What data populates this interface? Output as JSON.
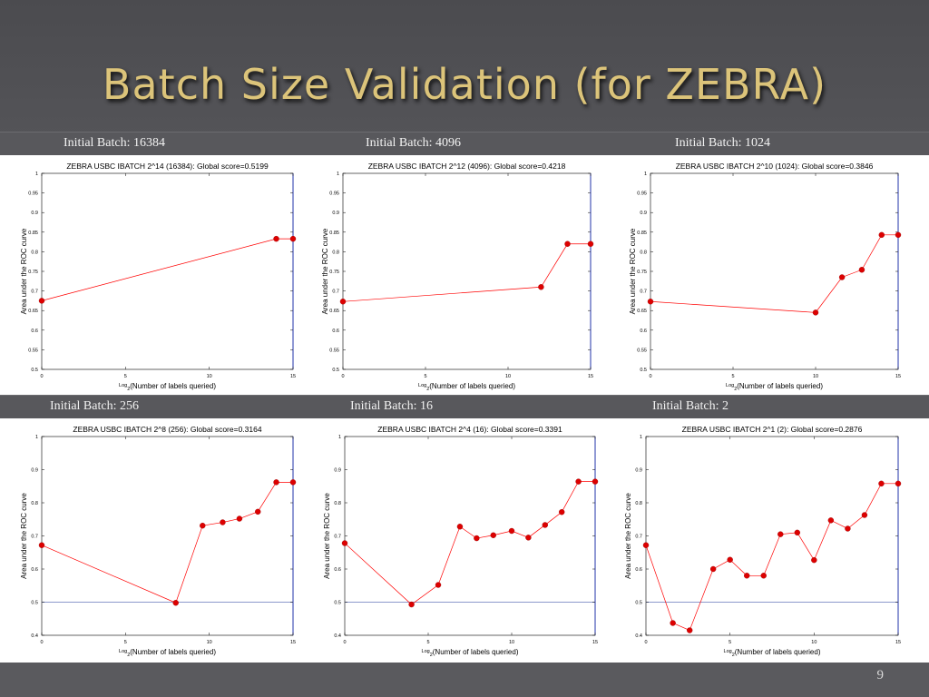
{
  "slide": {
    "title": "Batch Size Validation (for ZEBRA)",
    "page_number": "9",
    "row_labels": [
      "Initial Batch: 16384",
      "Initial Batch: 4096",
      "Initial Batch: 1024",
      "Initial Batch: 256",
      "Initial Batch: 16",
      "Initial Batch: 2"
    ]
  },
  "colors": {
    "series": "#ff0000",
    "marker": "#dd0000",
    "title": "#dcc47a",
    "background": "#505054"
  },
  "chart_data": [
    {
      "type": "line",
      "title": "ZEBRA USBC IBATCH 2^14 (16384): Global score=0.5199",
      "xlabel_pre": "Log",
      "xlabel_sub": "2",
      "xlabel_post": "(Number of labels queried)",
      "ylabel": "Area under the ROC curve",
      "xlim": [
        0,
        15
      ],
      "ylim": [
        0.5,
        1
      ],
      "xticks": [
        0,
        5,
        10,
        15
      ],
      "xtick_labels": [
        "0",
        "5",
        "10",
        "15"
      ],
      "yticks": [
        0.5,
        0.55,
        0.6,
        0.65,
        0.7,
        0.75,
        0.8,
        0.85,
        0.9,
        0.95,
        1
      ],
      "ytick_labels": [
        "0.5",
        "0.55",
        "0.6",
        "0.65",
        "0.7",
        "0.75",
        "0.8",
        "0.85",
        "0.9",
        "0.95",
        "1"
      ],
      "ref_line": null,
      "x": [
        0,
        14,
        15
      ],
      "y": [
        0.675,
        0.833,
        0.833
      ]
    },
    {
      "type": "line",
      "title": "ZEBRA USBC IBATCH 2^12 (4096): Global score=0.4218",
      "xlabel_pre": "Log",
      "xlabel_sub": "2",
      "xlabel_post": "(Number of labels queried)",
      "ylabel": "Area under the ROC curve",
      "xlim": [
        0,
        15
      ],
      "ylim": [
        0.5,
        1
      ],
      "xticks": [
        0,
        5,
        10,
        15
      ],
      "xtick_labels": [
        "0",
        "5",
        "10",
        "15"
      ],
      "yticks": [
        0.5,
        0.55,
        0.6,
        0.65,
        0.7,
        0.75,
        0.8,
        0.85,
        0.9,
        0.95,
        1
      ],
      "ytick_labels": [
        "0.5",
        "0.55",
        "0.6",
        "0.65",
        "0.7",
        "0.75",
        "0.8",
        "0.85",
        "0.9",
        "0.95",
        "1"
      ],
      "ref_line": null,
      "x": [
        0,
        12,
        13.6,
        15
      ],
      "y": [
        0.673,
        0.71,
        0.82,
        0.82
      ]
    },
    {
      "type": "line",
      "title": "ZEBRA USBC IBATCH 2^10 (1024): Global score=0.3846",
      "xlabel_pre": "Log",
      "xlabel_sub": "2",
      "xlabel_post": "(Number of labels queried)",
      "ylabel": "Area under the ROC curve",
      "xlim": [
        0,
        15
      ],
      "ylim": [
        0.5,
        1
      ],
      "xticks": [
        0,
        5,
        10,
        15
      ],
      "xtick_labels": [
        "0",
        "5",
        "10",
        "15"
      ],
      "yticks": [
        0.5,
        0.55,
        0.6,
        0.65,
        0.7,
        0.75,
        0.8,
        0.85,
        0.9,
        0.95,
        1
      ],
      "ytick_labels": [
        "0.5",
        "0.55",
        "0.6",
        "0.65",
        "0.7",
        "0.75",
        "0.8",
        "0.85",
        "0.9",
        "0.95",
        "1"
      ],
      "ref_line": null,
      "x": [
        0,
        10,
        11.6,
        12.8,
        14,
        15
      ],
      "y": [
        0.673,
        0.645,
        0.735,
        0.754,
        0.843,
        0.843
      ]
    },
    {
      "type": "line",
      "title": "ZEBRA USBC IBATCH 2^8 (256): Global score=0.3164",
      "xlabel_pre": "Log",
      "xlabel_sub": "2",
      "xlabel_post": "(Number of labels queried)",
      "ylabel": "Area under the ROC curve",
      "xlim": [
        0,
        15
      ],
      "ylim": [
        0.4,
        1
      ],
      "xticks": [
        0,
        5,
        10,
        15
      ],
      "xtick_labels": [
        "0",
        "5",
        "10",
        "15"
      ],
      "yticks": [
        0.4,
        0.5,
        0.6,
        0.7,
        0.8,
        0.9,
        1
      ],
      "ytick_labels": [
        "0.4",
        "0.5",
        "0.6",
        "0.7",
        "0.8",
        "0.9",
        "1"
      ],
      "ref_line": 0.5,
      "x": [
        0,
        8,
        9.6,
        10.8,
        11.8,
        12.9,
        14,
        15
      ],
      "y": [
        0.672,
        0.498,
        0.731,
        0.741,
        0.752,
        0.773,
        0.862,
        0.862
      ]
    },
    {
      "type": "line",
      "title": "ZEBRA USBC IBATCH 2^4 (16): Global score=0.3391",
      "xlabel_pre": "Log",
      "xlabel_sub": "2",
      "xlabel_post": "(Number of labels queried)",
      "ylabel": "Area under the ROC curve",
      "xlim": [
        0,
        15
      ],
      "ylim": [
        0.4,
        1
      ],
      "xticks": [
        0,
        5,
        10,
        15
      ],
      "xtick_labels": [
        "0",
        "5",
        "10",
        "15"
      ],
      "yticks": [
        0.4,
        0.5,
        0.6,
        0.7,
        0.8,
        0.9,
        1
      ],
      "ytick_labels": [
        "0.4",
        "0.5",
        "0.6",
        "0.7",
        "0.8",
        "0.9",
        "1"
      ],
      "ref_line": 0.5,
      "x": [
        0,
        4,
        5.6,
        6.9,
        7.9,
        8.9,
        10,
        11,
        12,
        13,
        14,
        15
      ],
      "y": [
        0.678,
        0.493,
        0.552,
        0.728,
        0.693,
        0.702,
        0.715,
        0.695,
        0.733,
        0.772,
        0.864,
        0.864
      ]
    },
    {
      "type": "line",
      "title": "ZEBRA USBC IBATCH 2^1 (2): Global score=0.2876",
      "xlabel_pre": "Log",
      "xlabel_sub": "2",
      "xlabel_post": "(Number of labels queried)",
      "ylabel": "Area under the ROC curve",
      "xlim": [
        0,
        15
      ],
      "ylim": [
        0.4,
        1
      ],
      "xticks": [
        0,
        5,
        10,
        15
      ],
      "xtick_labels": [
        "0",
        "5",
        "10",
        "15"
      ],
      "yticks": [
        0.4,
        0.5,
        0.6,
        0.7,
        0.8,
        0.9,
        1
      ],
      "ytick_labels": [
        "0.4",
        "0.5",
        "0.6",
        "0.7",
        "0.8",
        "0.9",
        "1"
      ],
      "ref_line": 0.5,
      "x": [
        0,
        1.6,
        2.6,
        4,
        5,
        6,
        7,
        8,
        9,
        10,
        11,
        12,
        13,
        14,
        15
      ],
      "y": [
        0.672,
        0.437,
        0.415,
        0.6,
        0.628,
        0.58,
        0.58,
        0.705,
        0.71,
        0.627,
        0.747,
        0.722,
        0.763,
        0.858,
        0.858
      ]
    }
  ]
}
